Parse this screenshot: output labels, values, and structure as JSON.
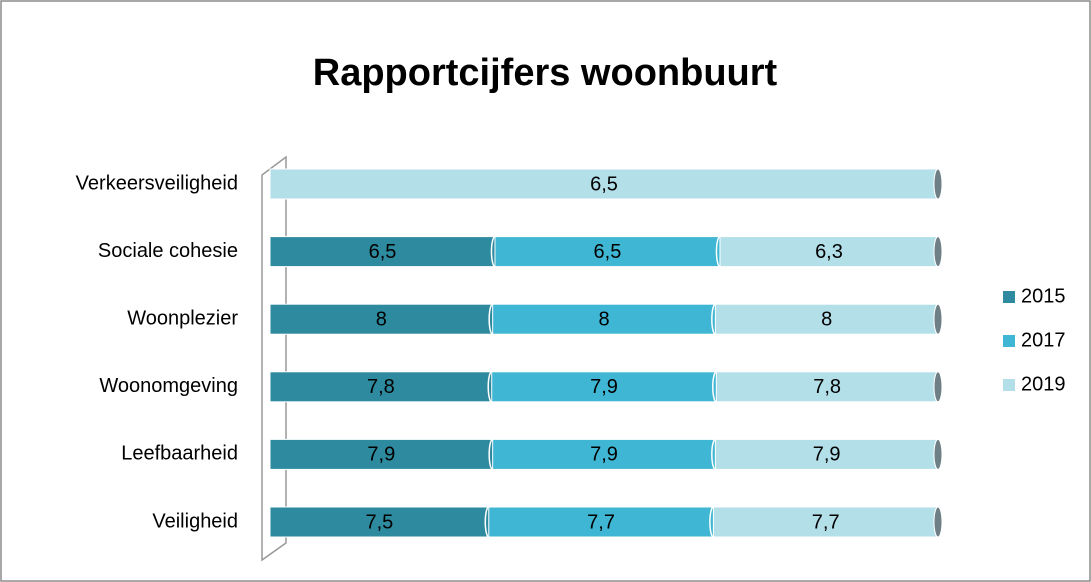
{
  "chart_data": {
    "type": "bar",
    "stacked": "percent",
    "title": "Rapportcijfers woonbuurt",
    "categories": [
      "Verkeersveiligheid",
      "Sociale cohesie",
      "Woonplezier",
      "Woonomgeving",
      "Leefbaarheid",
      "Veiligheid"
    ],
    "series": [
      {
        "name": "2015",
        "color": "#2e8a9e",
        "values": [
          null,
          6.5,
          8,
          7.8,
          7.9,
          7.5
        ],
        "value_labels": [
          null,
          "6,5",
          "8",
          "7,8",
          "7,9",
          "7,5"
        ]
      },
      {
        "name": "2017",
        "color": "#3fb6d3",
        "values": [
          null,
          6.5,
          8,
          7.9,
          7.9,
          7.7
        ],
        "value_labels": [
          null,
          "6,5",
          "8",
          "7,9",
          "7,9",
          "7,7"
        ]
      },
      {
        "name": "2019",
        "color": "#b3dfe9",
        "values": [
          6.5,
          6.3,
          8,
          7.8,
          7.9,
          7.7
        ],
        "value_labels": [
          "6,5",
          "6,3",
          "8",
          "7,8",
          "7,9",
          "7,7"
        ]
      }
    ]
  }
}
